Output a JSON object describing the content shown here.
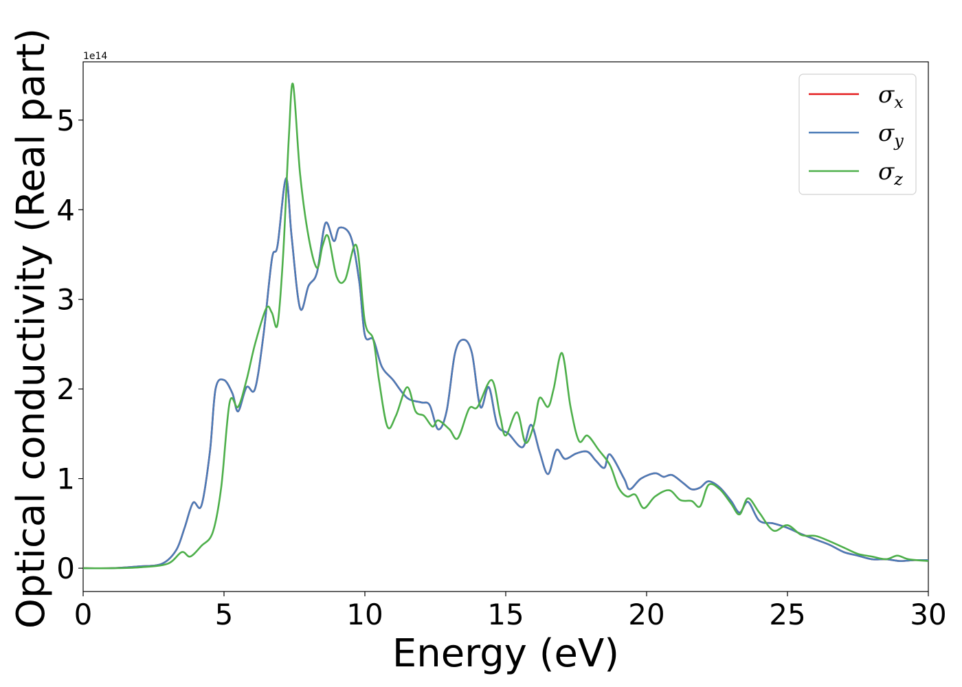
{
  "chart_data": {
    "type": "line",
    "xlabel": "Energy (eV)",
    "ylabel": "Optical conductivity (Real part)",
    "y_offset_label": "1e14",
    "y_multiplier": 100000000000000.0,
    "xlim": [
      0,
      30
    ],
    "ylim": [
      -0.26,
      5.65
    ],
    "x_ticks": [
      0,
      5,
      10,
      15,
      20,
      25,
      30
    ],
    "y_ticks": [
      0,
      1,
      2,
      3,
      4,
      5
    ],
    "grid": false,
    "legend": {
      "position": "top-right"
    },
    "series": [
      {
        "name": "σ",
        "subscript": "x",
        "color": "#e41a1c",
        "points": [
          [
            0,
            0
          ],
          [
            1,
            0
          ],
          [
            2,
            0.02
          ],
          [
            2.8,
            0.05
          ],
          [
            3.3,
            0.2
          ],
          [
            3.6,
            0.45
          ],
          [
            3.9,
            0.73
          ],
          [
            4.2,
            0.7
          ],
          [
            4.5,
            1.3
          ],
          [
            4.7,
            2.0
          ],
          [
            5.0,
            2.1
          ],
          [
            5.3,
            1.95
          ],
          [
            5.5,
            1.75
          ],
          [
            5.8,
            2.02
          ],
          [
            6.1,
            2.0
          ],
          [
            6.4,
            2.6
          ],
          [
            6.7,
            3.45
          ],
          [
            6.9,
            3.6
          ],
          [
            7.2,
            4.35
          ],
          [
            7.4,
            3.7
          ],
          [
            7.7,
            2.9
          ],
          [
            8.0,
            3.15
          ],
          [
            8.3,
            3.3
          ],
          [
            8.6,
            3.85
          ],
          [
            8.9,
            3.65
          ],
          [
            9.1,
            3.8
          ],
          [
            9.5,
            3.7
          ],
          [
            9.8,
            3.2
          ],
          [
            10.0,
            2.6
          ],
          [
            10.3,
            2.55
          ],
          [
            10.6,
            2.25
          ],
          [
            11.0,
            2.1
          ],
          [
            11.5,
            1.9
          ],
          [
            12.0,
            1.85
          ],
          [
            12.3,
            1.82
          ],
          [
            12.6,
            1.55
          ],
          [
            12.9,
            1.75
          ],
          [
            13.2,
            2.4
          ],
          [
            13.5,
            2.55
          ],
          [
            13.8,
            2.4
          ],
          [
            14.1,
            1.8
          ],
          [
            14.4,
            2.02
          ],
          [
            14.7,
            1.6
          ],
          [
            15.1,
            1.5
          ],
          [
            15.6,
            1.35
          ],
          [
            15.9,
            1.6
          ],
          [
            16.2,
            1.3
          ],
          [
            16.5,
            1.05
          ],
          [
            16.8,
            1.32
          ],
          [
            17.1,
            1.22
          ],
          [
            17.5,
            1.28
          ],
          [
            17.9,
            1.3
          ],
          [
            18.2,
            1.2
          ],
          [
            18.5,
            1.12
          ],
          [
            18.7,
            1.27
          ],
          [
            19.2,
            1.0
          ],
          [
            19.4,
            0.88
          ],
          [
            19.8,
            1.0
          ],
          [
            20.3,
            1.06
          ],
          [
            20.6,
            1.02
          ],
          [
            20.9,
            1.04
          ],
          [
            21.3,
            0.95
          ],
          [
            21.6,
            0.88
          ],
          [
            21.9,
            0.9
          ],
          [
            22.2,
            0.97
          ],
          [
            22.6,
            0.9
          ],
          [
            23.0,
            0.75
          ],
          [
            23.3,
            0.62
          ],
          [
            23.6,
            0.74
          ],
          [
            24.0,
            0.53
          ],
          [
            24.5,
            0.5
          ],
          [
            25.0,
            0.45
          ],
          [
            25.5,
            0.38
          ],
          [
            26.0,
            0.32
          ],
          [
            26.5,
            0.26
          ],
          [
            27.0,
            0.18
          ],
          [
            27.5,
            0.14
          ],
          [
            28.0,
            0.1
          ],
          [
            28.5,
            0.1
          ],
          [
            29.0,
            0.08
          ],
          [
            29.5,
            0.09
          ],
          [
            30.0,
            0.09
          ]
        ]
      },
      {
        "name": "σ",
        "subscript": "y",
        "color": "#4a7bb7",
        "points": [
          [
            0,
            0
          ],
          [
            1,
            0
          ],
          [
            2,
            0.02
          ],
          [
            2.8,
            0.05
          ],
          [
            3.3,
            0.2
          ],
          [
            3.6,
            0.45
          ],
          [
            3.9,
            0.73
          ],
          [
            4.2,
            0.7
          ],
          [
            4.5,
            1.3
          ],
          [
            4.7,
            2.0
          ],
          [
            5.0,
            2.1
          ],
          [
            5.3,
            1.95
          ],
          [
            5.5,
            1.75
          ],
          [
            5.8,
            2.02
          ],
          [
            6.1,
            2.0
          ],
          [
            6.4,
            2.6
          ],
          [
            6.7,
            3.45
          ],
          [
            6.9,
            3.6
          ],
          [
            7.2,
            4.35
          ],
          [
            7.4,
            3.7
          ],
          [
            7.7,
            2.9
          ],
          [
            8.0,
            3.15
          ],
          [
            8.3,
            3.3
          ],
          [
            8.6,
            3.85
          ],
          [
            8.9,
            3.65
          ],
          [
            9.1,
            3.8
          ],
          [
            9.5,
            3.7
          ],
          [
            9.8,
            3.2
          ],
          [
            10.0,
            2.6
          ],
          [
            10.3,
            2.55
          ],
          [
            10.6,
            2.25
          ],
          [
            11.0,
            2.1
          ],
          [
            11.5,
            1.9
          ],
          [
            12.0,
            1.85
          ],
          [
            12.3,
            1.82
          ],
          [
            12.6,
            1.55
          ],
          [
            12.9,
            1.75
          ],
          [
            13.2,
            2.4
          ],
          [
            13.5,
            2.55
          ],
          [
            13.8,
            2.4
          ],
          [
            14.1,
            1.8
          ],
          [
            14.4,
            2.02
          ],
          [
            14.7,
            1.6
          ],
          [
            15.1,
            1.5
          ],
          [
            15.6,
            1.35
          ],
          [
            15.9,
            1.6
          ],
          [
            16.2,
            1.3
          ],
          [
            16.5,
            1.05
          ],
          [
            16.8,
            1.32
          ],
          [
            17.1,
            1.22
          ],
          [
            17.5,
            1.28
          ],
          [
            17.9,
            1.3
          ],
          [
            18.2,
            1.2
          ],
          [
            18.5,
            1.12
          ],
          [
            18.7,
            1.27
          ],
          [
            19.2,
            1.0
          ],
          [
            19.4,
            0.88
          ],
          [
            19.8,
            1.0
          ],
          [
            20.3,
            1.06
          ],
          [
            20.6,
            1.02
          ],
          [
            20.9,
            1.04
          ],
          [
            21.3,
            0.95
          ],
          [
            21.6,
            0.88
          ],
          [
            21.9,
            0.9
          ],
          [
            22.2,
            0.97
          ],
          [
            22.6,
            0.9
          ],
          [
            23.0,
            0.75
          ],
          [
            23.3,
            0.62
          ],
          [
            23.6,
            0.74
          ],
          [
            24.0,
            0.53
          ],
          [
            24.5,
            0.5
          ],
          [
            25.0,
            0.45
          ],
          [
            25.5,
            0.38
          ],
          [
            26.0,
            0.32
          ],
          [
            26.5,
            0.26
          ],
          [
            27.0,
            0.18
          ],
          [
            27.5,
            0.14
          ],
          [
            28.0,
            0.1
          ],
          [
            28.5,
            0.1
          ],
          [
            29.0,
            0.08
          ],
          [
            29.5,
            0.09
          ],
          [
            30.0,
            0.09
          ]
        ]
      },
      {
        "name": "σ",
        "subscript": "z",
        "color": "#4daf4a",
        "points": [
          [
            0,
            0
          ],
          [
            1,
            0
          ],
          [
            2,
            0.01
          ],
          [
            3.0,
            0.05
          ],
          [
            3.5,
            0.18
          ],
          [
            3.8,
            0.13
          ],
          [
            4.2,
            0.25
          ],
          [
            4.6,
            0.4
          ],
          [
            4.9,
            0.9
          ],
          [
            5.2,
            1.85
          ],
          [
            5.5,
            1.8
          ],
          [
            5.8,
            2.1
          ],
          [
            6.1,
            2.5
          ],
          [
            6.5,
            2.9
          ],
          [
            6.7,
            2.85
          ],
          [
            6.9,
            2.72
          ],
          [
            7.1,
            3.5
          ],
          [
            7.3,
            4.8
          ],
          [
            7.45,
            5.4
          ],
          [
            7.7,
            4.4
          ],
          [
            8.0,
            3.7
          ],
          [
            8.3,
            3.35
          ],
          [
            8.5,
            3.6
          ],
          [
            8.7,
            3.7
          ],
          [
            9.0,
            3.25
          ],
          [
            9.3,
            3.22
          ],
          [
            9.7,
            3.6
          ],
          [
            10.0,
            2.75
          ],
          [
            10.3,
            2.55
          ],
          [
            10.5,
            2.1
          ],
          [
            10.8,
            1.58
          ],
          [
            11.1,
            1.7
          ],
          [
            11.5,
            2.02
          ],
          [
            11.8,
            1.75
          ],
          [
            12.1,
            1.7
          ],
          [
            12.4,
            1.58
          ],
          [
            12.6,
            1.65
          ],
          [
            13.0,
            1.55
          ],
          [
            13.3,
            1.45
          ],
          [
            13.7,
            1.78
          ],
          [
            14.0,
            1.8
          ],
          [
            14.5,
            2.1
          ],
          [
            14.8,
            1.7
          ],
          [
            15.0,
            1.48
          ],
          [
            15.4,
            1.74
          ],
          [
            15.7,
            1.4
          ],
          [
            16.0,
            1.6
          ],
          [
            16.2,
            1.9
          ],
          [
            16.5,
            1.8
          ],
          [
            16.7,
            2.0
          ],
          [
            17.0,
            2.4
          ],
          [
            17.3,
            1.8
          ],
          [
            17.6,
            1.42
          ],
          [
            17.9,
            1.48
          ],
          [
            18.3,
            1.32
          ],
          [
            18.7,
            1.15
          ],
          [
            19.0,
            0.9
          ],
          [
            19.3,
            0.8
          ],
          [
            19.6,
            0.82
          ],
          [
            19.9,
            0.67
          ],
          [
            20.3,
            0.8
          ],
          [
            20.8,
            0.87
          ],
          [
            21.2,
            0.76
          ],
          [
            21.6,
            0.75
          ],
          [
            21.9,
            0.69
          ],
          [
            22.2,
            0.93
          ],
          [
            22.6,
            0.88
          ],
          [
            23.0,
            0.72
          ],
          [
            23.3,
            0.6
          ],
          [
            23.6,
            0.78
          ],
          [
            24.0,
            0.62
          ],
          [
            24.5,
            0.42
          ],
          [
            25.0,
            0.48
          ],
          [
            25.5,
            0.37
          ],
          [
            26.0,
            0.36
          ],
          [
            26.5,
            0.3
          ],
          [
            27.0,
            0.23
          ],
          [
            27.5,
            0.16
          ],
          [
            28.0,
            0.13
          ],
          [
            28.5,
            0.1
          ],
          [
            28.9,
            0.14
          ],
          [
            29.3,
            0.1
          ],
          [
            30.0,
            0.08
          ]
        ]
      }
    ]
  }
}
